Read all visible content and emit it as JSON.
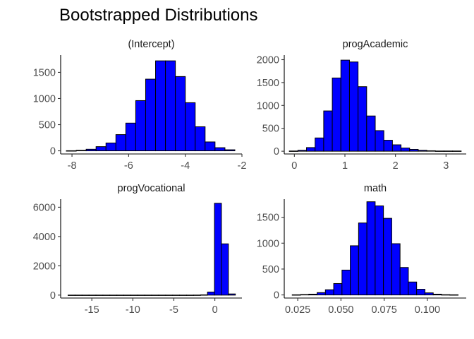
{
  "figure": {
    "title": "Bootstrapped Distributions"
  },
  "colors": {
    "bar_fill": "#0000FF",
    "bar_stroke": "#000000",
    "background": "#FFFFFF"
  },
  "chart_data": [
    {
      "type": "bar",
      "title": "(Intercept)",
      "bin_edges": [
        -8.2,
        -7.85,
        -7.5,
        -7.15,
        -6.8,
        -6.45,
        -6.1,
        -5.75,
        -5.4,
        -5.05,
        -4.7,
        -4.35,
        -4.0,
        -3.65,
        -3.3,
        -2.95,
        -2.6,
        -2.25
      ],
      "values": [
        2,
        10,
        30,
        80,
        150,
        310,
        530,
        960,
        1370,
        1720,
        1720,
        1420,
        920,
        460,
        170,
        60,
        20
      ],
      "xlim": [
        -8.4,
        -2.0
      ],
      "ylim": [
        -60,
        1830
      ],
      "xticks": [
        -8,
        -6,
        -4,
        -2
      ],
      "xtick_labels": [
        "-8",
        "-6",
        "-4",
        "-2"
      ],
      "yticks": [
        0,
        500,
        1000,
        1500
      ],
      "ytick_labels": [
        "0",
        "500",
        "1000",
        "1500"
      ]
    },
    {
      "type": "bar",
      "title": "progAcademic",
      "bin_edges": [
        -0.1,
        0.07,
        0.24,
        0.41,
        0.58,
        0.75,
        0.92,
        1.09,
        1.26,
        1.43,
        1.6,
        1.77,
        1.94,
        2.11,
        2.28,
        2.45,
        2.62,
        2.79,
        2.96,
        3.13,
        3.3
      ],
      "values": [
        5,
        20,
        80,
        290,
        880,
        1600,
        1990,
        1950,
        1410,
        770,
        450,
        240,
        140,
        70,
        40,
        20,
        10,
        5,
        5,
        5
      ],
      "xlim": [
        -0.2,
        3.4
      ],
      "ylim": [
        -60,
        2100
      ],
      "xticks": [
        0,
        1,
        2,
        3
      ],
      "xtick_labels": [
        "0",
        "1",
        "2",
        "3"
      ],
      "yticks": [
        0,
        500,
        1000,
        1500,
        2000
      ],
      "ytick_labels": [
        "0",
        "500",
        "1000",
        "1500",
        "2000"
      ]
    },
    {
      "type": "bar",
      "title": "progVocational",
      "bin_edges": [
        -17.9,
        -17.05,
        -16.2,
        -15.35,
        -14.5,
        -13.65,
        -12.8,
        -11.95,
        -11.1,
        -10.25,
        -9.4,
        -8.55,
        -7.7,
        -6.85,
        -6.0,
        -5.15,
        -4.3,
        -3.45,
        -2.6,
        -1.75,
        -0.9,
        -0.05,
        0.8,
        1.65,
        2.5
      ],
      "values": [
        2,
        2,
        2,
        2,
        2,
        2,
        2,
        2,
        2,
        2,
        2,
        2,
        2,
        2,
        2,
        2,
        2,
        2,
        5,
        20,
        210,
        6270,
        3500,
        80
      ],
      "xlim": [
        -18.8,
        3.3
      ],
      "ylim": [
        -200,
        6550
      ],
      "xticks": [
        -15,
        -10,
        -5,
        0
      ],
      "xtick_labels": [
        "-15",
        "-10",
        "-5",
        "0"
      ],
      "yticks": [
        0,
        2000,
        4000,
        6000
      ],
      "ytick_labels": [
        "0",
        "2000",
        "4000",
        "6000"
      ]
    },
    {
      "type": "bar",
      "title": "math",
      "bin_edges": [
        0.0218,
        0.0266,
        0.0314,
        0.0362,
        0.041,
        0.0458,
        0.0506,
        0.0554,
        0.0602,
        0.065,
        0.0698,
        0.0746,
        0.0794,
        0.0842,
        0.089,
        0.0938,
        0.0986,
        0.1034,
        0.1082,
        0.113,
        0.1178
      ],
      "values": [
        3,
        8,
        15,
        45,
        100,
        220,
        480,
        950,
        1390,
        1800,
        1720,
        1480,
        990,
        530,
        250,
        110,
        40,
        15,
        5,
        3
      ],
      "xlim": [
        0.0172,
        0.1225
      ],
      "ylim": [
        -60,
        1850
      ],
      "xticks": [
        0.025,
        0.05,
        0.075,
        0.1
      ],
      "xtick_labels": [
        "0.025",
        "0.050",
        "0.075",
        "0.100"
      ],
      "yticks": [
        0,
        500,
        1000,
        1500
      ],
      "ytick_labels": [
        "0",
        "500",
        "1000",
        "1500"
      ]
    }
  ]
}
